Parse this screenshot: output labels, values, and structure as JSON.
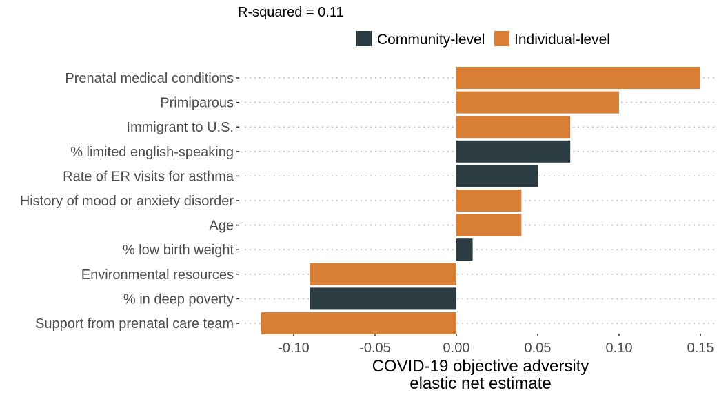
{
  "chart_data": {
    "type": "bar",
    "orientation": "horizontal",
    "subtitle": "R-squared = 0.11",
    "xlabel_line1": "COVID-19 objective adversity",
    "xlabel_line2": "elastic net estimate",
    "ylabel": "",
    "xlim": [
      -0.125,
      0.155
    ],
    "x_ticks": [
      -0.1,
      -0.05,
      0.0,
      0.05,
      0.1,
      0.15
    ],
    "x_tick_labels": [
      "-0.10",
      "-0.05",
      "0.00",
      "0.05",
      "0.10",
      "0.15"
    ],
    "grid": "horizontal dotted",
    "legend_position": "top",
    "legend": [
      {
        "name": "Community-level",
        "color": "#2b3c43"
      },
      {
        "name": "Individual-level",
        "color": "#d97f35"
      }
    ],
    "bars": [
      {
        "label": "Prenatal medical conditions",
        "value": 0.15,
        "group": "Individual-level"
      },
      {
        "label": "Primiparous",
        "value": 0.1,
        "group": "Individual-level"
      },
      {
        "label": "Immigrant to U.S.",
        "value": 0.07,
        "group": "Individual-level"
      },
      {
        "label": "% limited english-speaking",
        "value": 0.07,
        "group": "Community-level"
      },
      {
        "label": "Rate of ER visits for asthma",
        "value": 0.05,
        "group": "Community-level"
      },
      {
        "label": "History of mood or anxiety disorder",
        "value": 0.04,
        "group": "Individual-level"
      },
      {
        "label": "Age",
        "value": 0.04,
        "group": "Individual-level"
      },
      {
        "label": "% low birth weight",
        "value": 0.01,
        "group": "Community-level"
      },
      {
        "label": "Environmental resources",
        "value": -0.09,
        "group": "Individual-level"
      },
      {
        "label": "% in deep poverty",
        "value": -0.09,
        "group": "Community-level"
      },
      {
        "label": "Support from prenatal care team",
        "value": -0.12,
        "group": "Individual-level"
      }
    ]
  }
}
